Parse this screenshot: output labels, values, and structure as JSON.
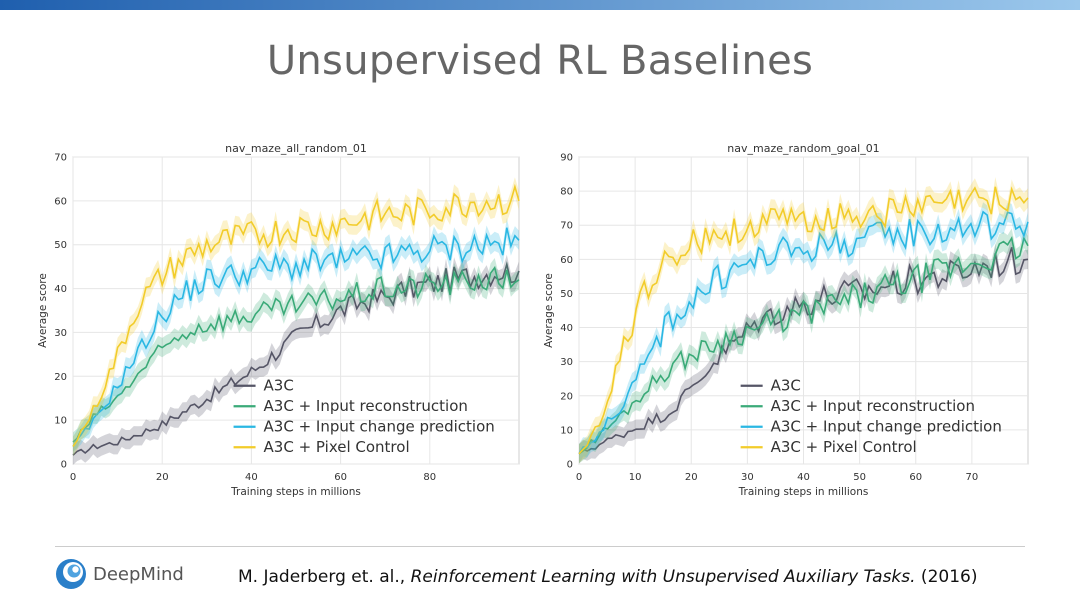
{
  "slide": {
    "title": "Unsupervised RL Baselines",
    "logo_text": "DeepMind",
    "citation_author": "M. Jaderberg et. al., ",
    "citation_title": "Reinforcement Learning with Unsupervised Auxiliary Tasks.",
    "citation_year": " (2016)",
    "top_bar_colors": [
      "#1f5fae",
      "#9cc8ec"
    ]
  },
  "chart_data": [
    {
      "type": "line",
      "title": "nav_maze_all_random_01",
      "xlabel": "Training steps in millions",
      "ylabel": "Average score",
      "xlim": [
        0,
        100
      ],
      "ylim": [
        0,
        70
      ],
      "xticks": [
        0,
        20,
        40,
        60,
        80
      ],
      "yticks": [
        0,
        10,
        20,
        30,
        40,
        50,
        60,
        70
      ],
      "grid": true,
      "legend": "lower-center",
      "series": [
        {
          "name": "A3C",
          "color": "#555566",
          "x": [
            0,
            5,
            10,
            15,
            20,
            25,
            30,
            35,
            40,
            45,
            50,
            55,
            60,
            65,
            70,
            75,
            80,
            85,
            90,
            95,
            100
          ],
          "y": [
            2,
            4,
            5,
            7,
            9,
            12,
            15,
            18,
            21,
            25,
            29,
            32,
            35,
            37,
            38,
            40,
            41,
            42,
            43,
            44,
            44
          ]
        },
        {
          "name": "A3C + Input reconstruction",
          "color": "#3aaa78",
          "x": [
            0,
            5,
            10,
            15,
            20,
            25,
            30,
            35,
            40,
            45,
            50,
            55,
            60,
            65,
            70,
            75,
            80,
            85,
            90,
            95,
            100
          ],
          "y": [
            5,
            11,
            15,
            21,
            26,
            30,
            32,
            33,
            34,
            35,
            36,
            37,
            38,
            39,
            40,
            40,
            41,
            41,
            42,
            42,
            42
          ]
        },
        {
          "name": "A3C + Input change prediction",
          "color": "#2ab7e3",
          "x": [
            0,
            5,
            10,
            15,
            20,
            25,
            30,
            35,
            40,
            45,
            50,
            55,
            60,
            65,
            70,
            75,
            80,
            85,
            90,
            95,
            100
          ],
          "y": [
            4,
            10,
            18,
            26,
            34,
            39,
            42,
            43,
            44,
            45,
            45,
            46,
            46,
            47,
            47,
            48,
            49,
            49,
            50,
            50,
            51
          ]
        },
        {
          "name": "A3C + Pixel Control",
          "color": "#f2cc2a",
          "x": [
            0,
            5,
            10,
            15,
            20,
            25,
            30,
            35,
            40,
            45,
            50,
            55,
            60,
            65,
            70,
            75,
            80,
            85,
            90,
            95,
            100
          ],
          "y": [
            4,
            13,
            25,
            37,
            43,
            47,
            50,
            51,
            52,
            53,
            54,
            54,
            55,
            56,
            57,
            57,
            58,
            59,
            60,
            60,
            60
          ]
        }
      ]
    },
    {
      "type": "line",
      "title": "nav_maze_random_goal_01",
      "xlabel": "Training steps in millions",
      "ylabel": "Average score",
      "xlim": [
        0,
        80
      ],
      "ylim": [
        0,
        90
      ],
      "xticks": [
        0,
        10,
        20,
        30,
        40,
        50,
        60,
        70
      ],
      "yticks": [
        0,
        10,
        20,
        30,
        40,
        50,
        60,
        70,
        80,
        90
      ],
      "grid": true,
      "legend": "lower-center",
      "series": [
        {
          "name": "A3C",
          "color": "#555566",
          "x": [
            0,
            4,
            8,
            12,
            16,
            20,
            24,
            28,
            32,
            36,
            40,
            44,
            48,
            52,
            56,
            60,
            64,
            68,
            72,
            76,
            80
          ],
          "y": [
            3,
            6,
            9,
            12,
            15,
            22,
            30,
            36,
            42,
            45,
            47,
            49,
            50,
            51,
            53,
            54,
            55,
            56,
            58,
            59,
            60
          ]
        },
        {
          "name": "A3C + Input reconstruction",
          "color": "#3aaa78",
          "x": [
            0,
            4,
            8,
            12,
            16,
            20,
            24,
            28,
            32,
            36,
            40,
            44,
            48,
            52,
            56,
            60,
            64,
            68,
            72,
            76,
            80
          ],
          "y": [
            3,
            9,
            15,
            22,
            28,
            32,
            35,
            38,
            40,
            42,
            44,
            46,
            48,
            50,
            52,
            54,
            56,
            58,
            60,
            62,
            64
          ]
        },
        {
          "name": "A3C + Input change prediction",
          "color": "#2ab7e3",
          "x": [
            0,
            4,
            8,
            12,
            16,
            20,
            24,
            28,
            32,
            36,
            40,
            44,
            48,
            52,
            56,
            60,
            64,
            68,
            72,
            76,
            80
          ],
          "y": [
            3,
            10,
            18,
            30,
            42,
            48,
            53,
            57,
            60,
            62,
            63,
            64,
            65,
            66,
            67,
            68,
            68,
            69,
            70,
            70,
            71
          ]
        },
        {
          "name": "A3C + Pixel Control",
          "color": "#f2cc2a",
          "x": [
            0,
            4,
            8,
            12,
            16,
            20,
            24,
            28,
            32,
            36,
            40,
            44,
            48,
            52,
            56,
            60,
            64,
            68,
            72,
            76,
            80
          ],
          "y": [
            3,
            12,
            35,
            52,
            60,
            64,
            67,
            69,
            70,
            71,
            72,
            72,
            73,
            74,
            74,
            75,
            76,
            77,
            77,
            78,
            78
          ]
        }
      ]
    }
  ]
}
